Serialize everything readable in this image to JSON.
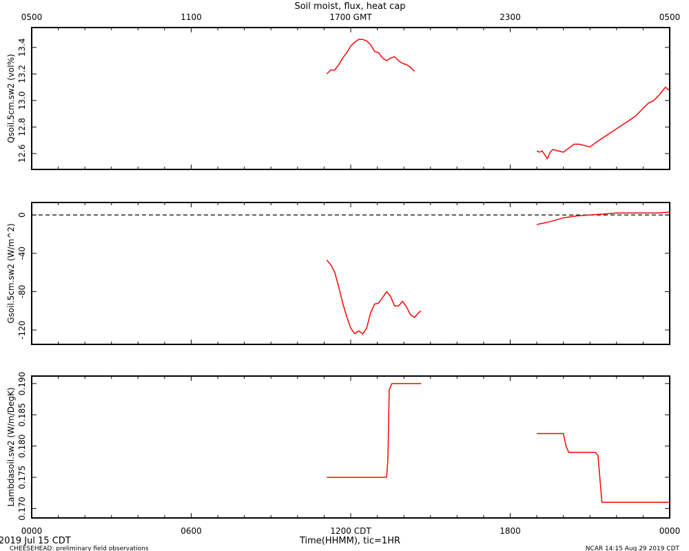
{
  "title": "Soil moist, flux, heat cap",
  "top_axis": {
    "ticks": [
      {
        "x": 0,
        "label": "0500"
      },
      {
        "x": 6,
        "label": "1100"
      },
      {
        "x": 12,
        "label": "1700 GMT"
      },
      {
        "x": 18,
        "label": "2300"
      },
      {
        "x": 24,
        "label": "0500"
      }
    ]
  },
  "bottom_axis": {
    "label": "Time(HHMM), tic=1HR",
    "ticks": [
      {
        "x": 0,
        "label": "0000"
      },
      {
        "x": 6,
        "label": "0600"
      },
      {
        "x": 12,
        "label": "1200 CDT"
      },
      {
        "x": 18,
        "label": "1800"
      },
      {
        "x": 24,
        "label": "0000"
      }
    ]
  },
  "footer": {
    "date": "2019 Jul 15 CDT",
    "left": "CHEESEHEAD: preliminary field observations",
    "right": "NCAR 14:15 Aug 29 2019 CDT"
  },
  "colors": {
    "line": "#ff0000",
    "axis": "#000000",
    "zero_line": "#000000"
  },
  "chart_data": [
    {
      "type": "line",
      "ylabel": "Qsoil.5cm.sw2 (vol%)",
      "xlim": [
        0,
        24
      ],
      "ylim": [
        12.48,
        13.55
      ],
      "yticks": [
        12.6,
        12.8,
        13.0,
        13.2,
        13.4
      ],
      "ytick_labels": [
        "12.6",
        "12.8",
        "13.0",
        "13.2",
        "13.4"
      ],
      "zero_line": false,
      "segments": [
        [
          [
            11.1,
            13.2
          ],
          [
            11.25,
            13.23
          ],
          [
            11.4,
            13.23
          ],
          [
            11.55,
            13.27
          ],
          [
            11.7,
            13.32
          ],
          [
            11.85,
            13.36
          ],
          [
            12.0,
            13.41
          ],
          [
            12.15,
            13.44
          ],
          [
            12.3,
            13.46
          ],
          [
            12.45,
            13.46
          ],
          [
            12.6,
            13.45
          ],
          [
            12.75,
            13.42
          ],
          [
            12.9,
            13.37
          ],
          [
            13.05,
            13.36
          ],
          [
            13.2,
            13.32
          ],
          [
            13.35,
            13.3
          ],
          [
            13.5,
            13.32
          ],
          [
            13.65,
            13.33
          ],
          [
            13.8,
            13.3
          ],
          [
            13.95,
            13.28
          ],
          [
            14.1,
            13.27
          ],
          [
            14.25,
            13.25
          ],
          [
            14.4,
            13.22
          ]
        ],
        [
          [
            19.0,
            12.62
          ],
          [
            19.1,
            12.61
          ],
          [
            19.2,
            12.62
          ],
          [
            19.3,
            12.59
          ],
          [
            19.4,
            12.56
          ],
          [
            19.5,
            12.61
          ],
          [
            19.6,
            12.63
          ],
          [
            19.8,
            12.62
          ],
          [
            20.0,
            12.61
          ],
          [
            20.2,
            12.64
          ],
          [
            20.4,
            12.67
          ],
          [
            20.6,
            12.67
          ],
          [
            20.8,
            12.66
          ],
          [
            21.0,
            12.65
          ],
          [
            21.2,
            12.68
          ],
          [
            21.5,
            12.72
          ],
          [
            21.8,
            12.76
          ],
          [
            22.1,
            12.8
          ],
          [
            22.4,
            12.84
          ],
          [
            22.7,
            12.88
          ],
          [
            23.0,
            12.94
          ],
          [
            23.2,
            12.98
          ],
          [
            23.4,
            13.0
          ],
          [
            23.6,
            13.04
          ],
          [
            23.75,
            13.08
          ],
          [
            23.85,
            13.1
          ],
          [
            23.95,
            13.08
          ],
          [
            24.0,
            13.09
          ]
        ]
      ]
    },
    {
      "type": "line",
      "ylabel": "Gsoil.5cm.sw2 (W/m^2)",
      "xlim": [
        0,
        24
      ],
      "ylim": [
        -135,
        13
      ],
      "yticks": [
        0,
        -40,
        -80,
        -120
      ],
      "ytick_labels": [
        "0",
        "-40",
        "-80",
        "-120"
      ],
      "zero_line": true,
      "segments": [
        [
          [
            11.1,
            -47
          ],
          [
            11.25,
            -52
          ],
          [
            11.4,
            -60
          ],
          [
            11.55,
            -75
          ],
          [
            11.7,
            -92
          ],
          [
            11.85,
            -106
          ],
          [
            12.0,
            -118
          ],
          [
            12.15,
            -124
          ],
          [
            12.3,
            -121
          ],
          [
            12.45,
            -124
          ],
          [
            12.6,
            -118
          ],
          [
            12.75,
            -102
          ],
          [
            12.9,
            -93
          ],
          [
            13.05,
            -92
          ],
          [
            13.2,
            -86
          ],
          [
            13.35,
            -80
          ],
          [
            13.5,
            -85
          ],
          [
            13.65,
            -95
          ],
          [
            13.8,
            -95
          ],
          [
            13.95,
            -90
          ],
          [
            14.1,
            -96
          ],
          [
            14.25,
            -104
          ],
          [
            14.4,
            -107
          ],
          [
            14.55,
            -102
          ],
          [
            14.65,
            -100
          ]
        ],
        [
          [
            19.0,
            -10
          ],
          [
            19.5,
            -7
          ],
          [
            20.0,
            -3
          ],
          [
            20.5,
            -1
          ],
          [
            21.0,
            0
          ],
          [
            21.5,
            1
          ],
          [
            22.0,
            2
          ],
          [
            22.5,
            2
          ],
          [
            23.0,
            2
          ],
          [
            23.5,
            2
          ],
          [
            24.0,
            3
          ]
        ]
      ]
    },
    {
      "type": "line",
      "ylabel": "Lambdasoil.sw2 (W/m/DegK)",
      "xlim": [
        0,
        24
      ],
      "ylim": [
        0.1685,
        0.1912
      ],
      "yticks": [
        0.17,
        0.175,
        0.18,
        0.185,
        0.19
      ],
      "ytick_labels": [
        "0.170",
        "0.175",
        "0.180",
        "0.185",
        "0.190"
      ],
      "zero_line": false,
      "segments": [
        [
          [
            11.1,
            0.175
          ],
          [
            13.3,
            0.175
          ],
          [
            13.35,
            0.175
          ],
          [
            13.4,
            0.178
          ],
          [
            13.45,
            0.189
          ],
          [
            13.55,
            0.19
          ],
          [
            14.65,
            0.19
          ]
        ],
        [
          [
            19.0,
            0.182
          ],
          [
            20.0,
            0.182
          ],
          [
            20.1,
            0.18
          ],
          [
            20.2,
            0.179
          ],
          [
            21.2,
            0.179
          ],
          [
            21.3,
            0.1785
          ],
          [
            21.35,
            0.176
          ],
          [
            21.45,
            0.171
          ],
          [
            24.0,
            0.171
          ]
        ]
      ]
    }
  ]
}
